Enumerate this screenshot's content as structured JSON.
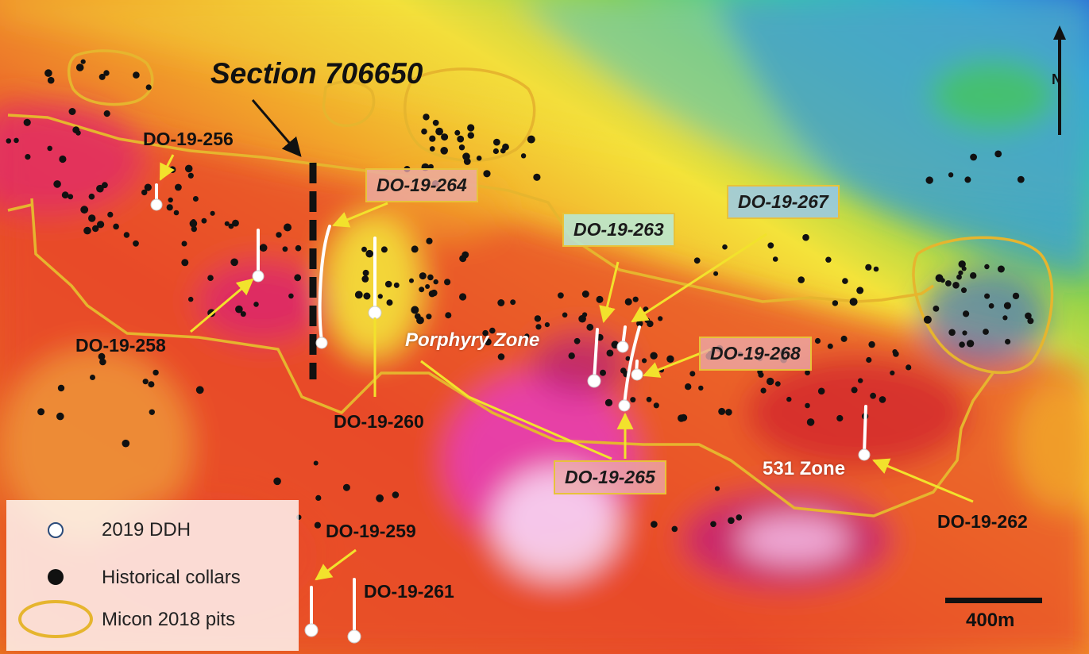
{
  "map": {
    "section_title": "Section 706650",
    "zones": {
      "porphyry": "Porphyry Zone",
      "z531": "531 Zone"
    },
    "holes_plain": {
      "dh256": "DO-19-256",
      "dh258": "DO-19-258",
      "dh260": "DO-19-260",
      "dh259": "DO-19-259",
      "dh261": "DO-19-261",
      "dh262": "DO-19-262"
    },
    "holes_boxed": {
      "dh264": "DO-19-264",
      "dh263": "DO-19-263",
      "dh267": "DO-19-267",
      "dh268": "DO-19-268",
      "dh265": "DO-19-265"
    },
    "north": "N",
    "scale": "400m",
    "colors": {
      "pit_outline": "#e6b52e",
      "arrow": "#f2e22c",
      "ddh": "#ffffff",
      "collar": "#111111"
    }
  },
  "legend": {
    "ddh": "2019 DDH",
    "collars": "Historical collars",
    "pits": "Micon 2018 pits"
  }
}
